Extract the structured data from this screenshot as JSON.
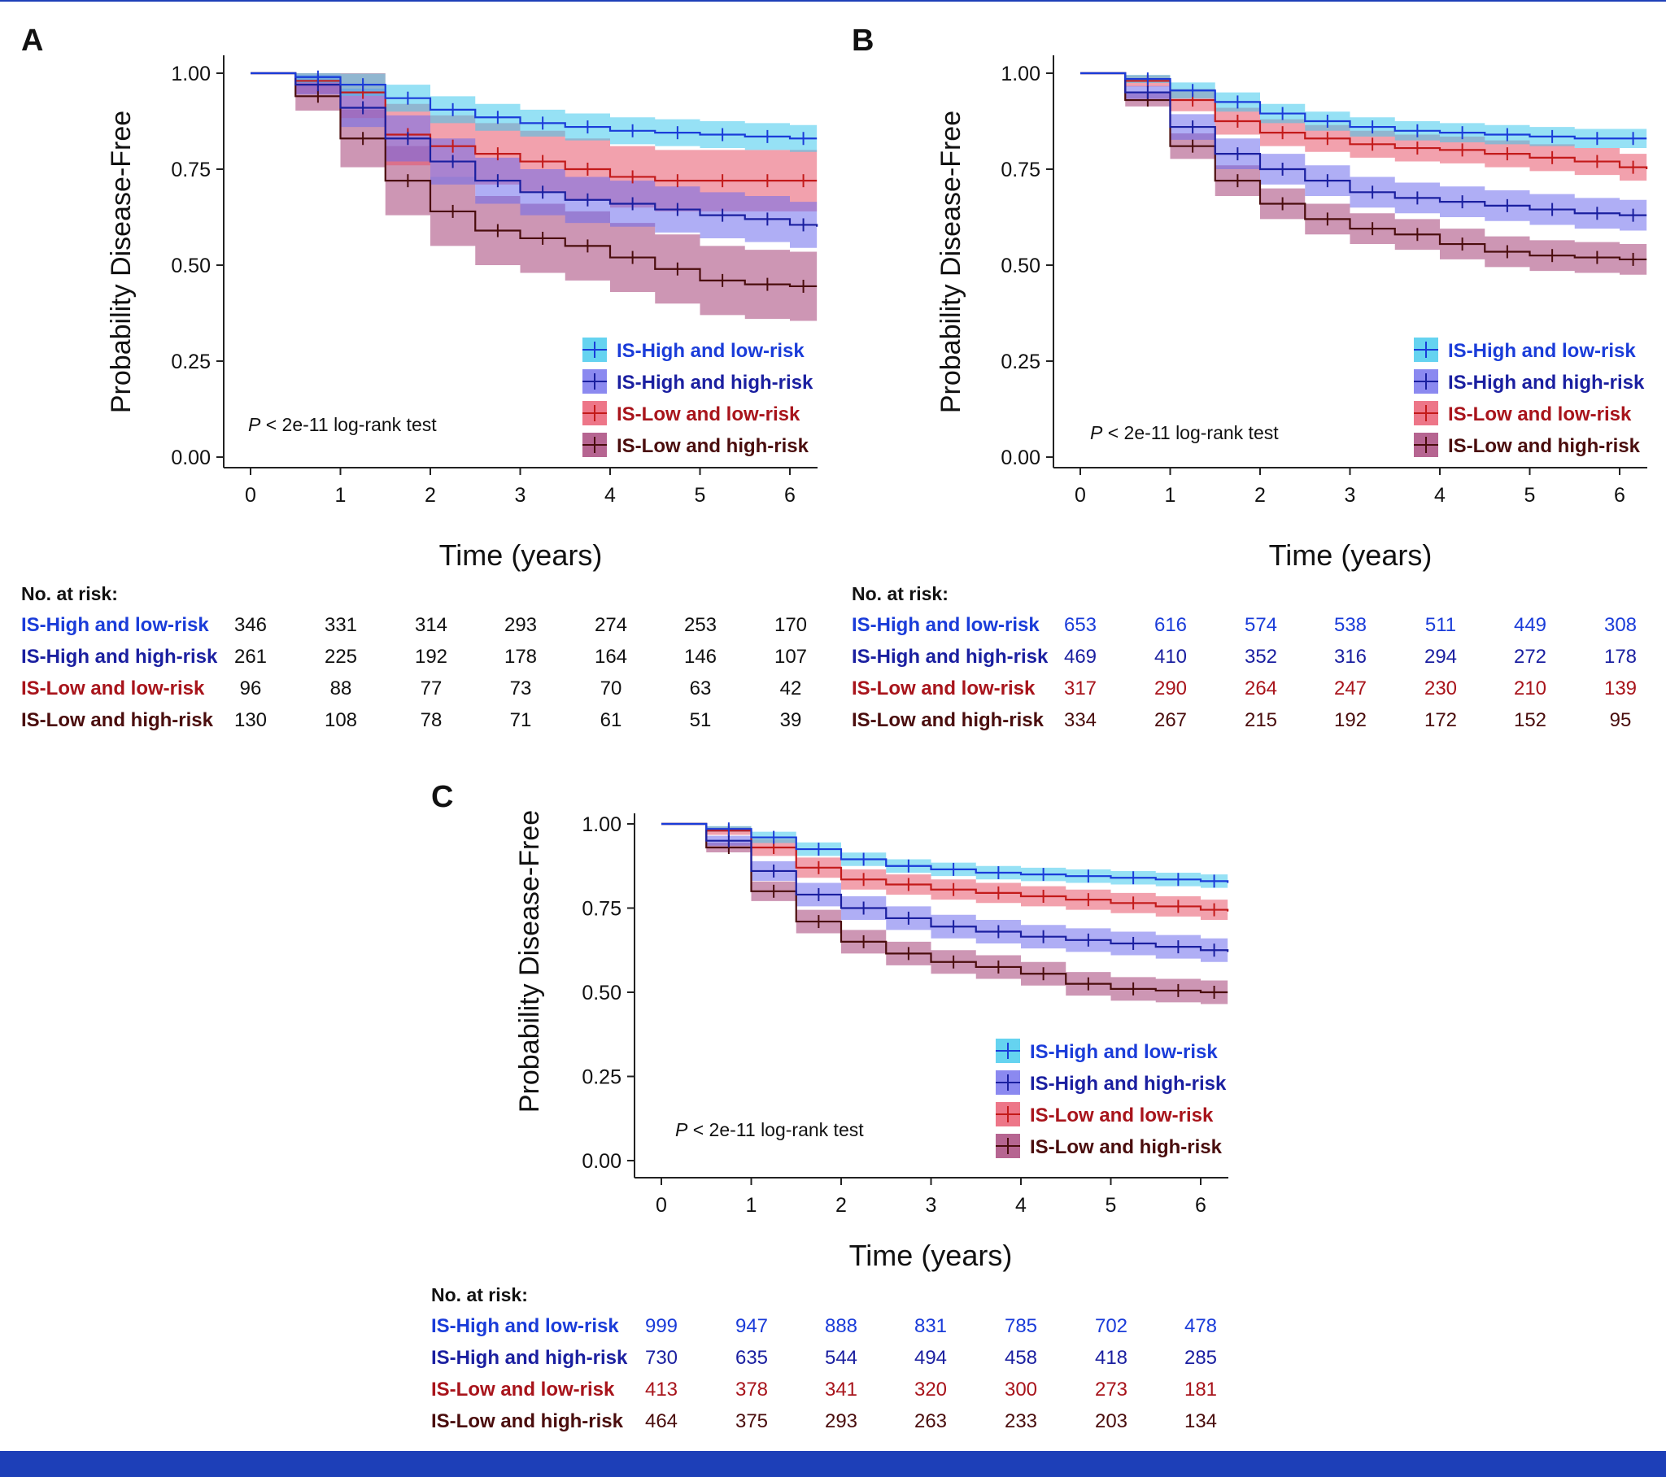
{
  "colors": {
    "IS-High and low-risk": {
      "line": "#1a3cd9",
      "band": "#3fc8ec",
      "text": "#1a3cd9"
    },
    "IS-High and high-risk": {
      "line": "#1a1fa0",
      "band": "#6e6bec",
      "text": "#1a1fa0"
    },
    "IS-Low and low-risk": {
      "line": "#c31a1a",
      "band": "#e8546a",
      "text": "#a8141b"
    },
    "IS-Low and high-risk": {
      "line": "#4a0d0d",
      "band": "#a43f76",
      "text": "#4a0d0d"
    },
    "bottom_bar": "#1d3fb8"
  },
  "chart_data": [
    {
      "panel": "A",
      "type": "line",
      "ylabel": "Probability Disease-Free",
      "xlabel": "Time (years)",
      "xlim": [
        -0.3,
        6.3
      ],
      "ylim": [
        0,
        1.05
      ],
      "xticks": [
        "0",
        "1",
        "2",
        "3",
        "4",
        "5",
        "6"
      ],
      "yticks": [
        "0.00",
        "0.25",
        "0.50",
        "0.75",
        "1.00"
      ],
      "pvalue_p": "P",
      "pvalue_rest": " < 2e-11 log-rank test",
      "legend": [
        "IS-High and low-risk",
        "IS-High and high-risk",
        "IS-Low and low-risk",
        "IS-Low and high-risk"
      ],
      "series": [
        {
          "name": "IS-High and low-risk",
          "x": [
            0,
            0.5,
            1,
            1.5,
            2,
            2.5,
            3,
            3.5,
            4,
            4.5,
            5,
            5.5,
            6,
            6.3
          ],
          "values": [
            1.0,
            0.99,
            0.97,
            0.935,
            0.905,
            0.885,
            0.87,
            0.86,
            0.85,
            0.845,
            0.84,
            0.835,
            0.83,
            0.83
          ],
          "band": 0.035
        },
        {
          "name": "IS-High and high-risk",
          "x": [
            0,
            0.5,
            1,
            1.5,
            2,
            2.5,
            3,
            3.5,
            4,
            4.5,
            5,
            5.5,
            6,
            6.3
          ],
          "values": [
            1.0,
            0.97,
            0.91,
            0.83,
            0.77,
            0.72,
            0.69,
            0.67,
            0.66,
            0.645,
            0.63,
            0.62,
            0.605,
            0.6
          ],
          "band": 0.06
        },
        {
          "name": "IS-Low and low-risk",
          "x": [
            0,
            0.5,
            1,
            1.5,
            2,
            2.5,
            3,
            3.5,
            4,
            4.5,
            5,
            5.5,
            6,
            6.3
          ],
          "values": [
            1.0,
            0.98,
            0.95,
            0.84,
            0.81,
            0.79,
            0.77,
            0.75,
            0.73,
            0.72,
            0.72,
            0.72,
            0.72,
            0.72
          ],
          "band": 0.08
        },
        {
          "name": "IS-Low and high-risk",
          "x": [
            0,
            0.5,
            1,
            1.5,
            2,
            2.5,
            3,
            3.5,
            4,
            4.5,
            5,
            5.5,
            6,
            6.3
          ],
          "values": [
            1.0,
            0.94,
            0.83,
            0.72,
            0.64,
            0.59,
            0.57,
            0.55,
            0.52,
            0.49,
            0.46,
            0.45,
            0.445,
            0.445
          ],
          "band": 0.09
        }
      ],
      "risk_table": {
        "title": "No. at risk:",
        "rows": [
          {
            "label": "IS-High and low-risk",
            "values": [
              "346",
              "331",
              "314",
              "293",
              "274",
              "253",
              "170"
            ]
          },
          {
            "label": "IS-High and high-risk",
            "values": [
              "261",
              "225",
              "192",
              "178",
              "164",
              "146",
              "107"
            ]
          },
          {
            "label": "IS-Low and low-risk",
            "values": [
              "96",
              "88",
              "77",
              "73",
              "70",
              "63",
              "42"
            ]
          },
          {
            "label": "IS-Low and high-risk",
            "values": [
              "130",
              "108",
              "78",
              "71",
              "61",
              "51",
              "39"
            ]
          }
        ]
      }
    },
    {
      "panel": "B",
      "type": "line",
      "ylabel": "Probability Disease-Free",
      "xlabel": "Time (years)",
      "xlim": [
        -0.3,
        6.3
      ],
      "ylim": [
        0,
        1.05
      ],
      "xticks": [
        "0",
        "1",
        "2",
        "3",
        "4",
        "5",
        "6"
      ],
      "yticks": [
        "0.00",
        "0.25",
        "0.50",
        "0.75",
        "1.00"
      ],
      "pvalue_p": "P",
      "pvalue_rest": " < 2e-11 log-rank test",
      "legend": [
        "IS-High and low-risk",
        "IS-High and high-risk",
        "IS-Low and low-risk",
        "IS-Low and high-risk"
      ],
      "series": [
        {
          "name": "IS-High and low-risk",
          "x": [
            0,
            0.5,
            1,
            1.5,
            2,
            2.5,
            3,
            3.5,
            4,
            4.5,
            5,
            5.5,
            6,
            6.3
          ],
          "values": [
            1.0,
            0.985,
            0.955,
            0.925,
            0.895,
            0.875,
            0.86,
            0.85,
            0.845,
            0.84,
            0.835,
            0.83,
            0.83,
            0.83
          ],
          "band": 0.025
        },
        {
          "name": "IS-High and high-risk",
          "x": [
            0,
            0.5,
            1,
            1.5,
            2,
            2.5,
            3,
            3.5,
            4,
            4.5,
            5,
            5.5,
            6,
            6.3
          ],
          "values": [
            1.0,
            0.95,
            0.86,
            0.79,
            0.75,
            0.72,
            0.69,
            0.675,
            0.665,
            0.655,
            0.645,
            0.635,
            0.63,
            0.63
          ],
          "band": 0.04
        },
        {
          "name": "IS-Low and low-risk",
          "x": [
            0,
            0.5,
            1,
            1.5,
            2,
            2.5,
            3,
            3.5,
            4,
            4.5,
            5,
            5.5,
            6,
            6.3
          ],
          "values": [
            1.0,
            0.98,
            0.93,
            0.875,
            0.845,
            0.83,
            0.815,
            0.805,
            0.8,
            0.79,
            0.78,
            0.77,
            0.755,
            0.75
          ],
          "band": 0.035
        },
        {
          "name": "IS-Low and high-risk",
          "x": [
            0,
            0.5,
            1,
            1.5,
            2,
            2.5,
            3,
            3.5,
            4,
            4.5,
            5,
            5.5,
            6,
            6.3
          ],
          "values": [
            1.0,
            0.93,
            0.81,
            0.72,
            0.66,
            0.62,
            0.595,
            0.58,
            0.555,
            0.535,
            0.525,
            0.52,
            0.515,
            0.515
          ],
          "band": 0.04
        }
      ],
      "risk_table": {
        "title": "No. at risk:",
        "rows": [
          {
            "label": "IS-High and low-risk",
            "values": [
              "653",
              "616",
              "574",
              "538",
              "511",
              "449",
              "308"
            ]
          },
          {
            "label": "IS-High and high-risk",
            "values": [
              "469",
              "410",
              "352",
              "316",
              "294",
              "272",
              "178"
            ]
          },
          {
            "label": "IS-Low and low-risk",
            "values": [
              "317",
              "290",
              "264",
              "247",
              "230",
              "210",
              "139"
            ]
          },
          {
            "label": "IS-Low and high-risk",
            "values": [
              "334",
              "267",
              "215",
              "192",
              "172",
              "152",
              "95"
            ]
          }
        ]
      }
    },
    {
      "panel": "C",
      "type": "line",
      "ylabel": "Probability Disease-Free",
      "xlabel": "Time (years)",
      "xlim": [
        -0.3,
        6.3
      ],
      "ylim": [
        0,
        1.05
      ],
      "xticks": [
        "0",
        "1",
        "2",
        "3",
        "4",
        "5",
        "6"
      ],
      "yticks": [
        "0.00",
        "0.25",
        "0.50",
        "0.75",
        "1.00"
      ],
      "pvalue_p": "P",
      "pvalue_rest": " < 2e-11 log-rank test",
      "legend": [
        "IS-High and low-risk",
        "IS-High and high-risk",
        "IS-Low and low-risk",
        "IS-Low and high-risk"
      ],
      "series": [
        {
          "name": "IS-High and low-risk",
          "x": [
            0,
            0.5,
            1,
            1.5,
            2,
            2.5,
            3,
            3.5,
            4,
            4.5,
            5,
            5.5,
            6,
            6.3
          ],
          "values": [
            1.0,
            0.985,
            0.96,
            0.925,
            0.895,
            0.875,
            0.865,
            0.855,
            0.85,
            0.845,
            0.84,
            0.835,
            0.83,
            0.825
          ],
          "band": 0.02
        },
        {
          "name": "IS-High and high-risk",
          "x": [
            0,
            0.5,
            1,
            1.5,
            2,
            2.5,
            3,
            3.5,
            4,
            4.5,
            5,
            5.5,
            6,
            6.3
          ],
          "values": [
            1.0,
            0.95,
            0.86,
            0.79,
            0.75,
            0.72,
            0.695,
            0.68,
            0.665,
            0.655,
            0.645,
            0.635,
            0.625,
            0.62
          ],
          "band": 0.035
        },
        {
          "name": "IS-Low and low-risk",
          "x": [
            0,
            0.5,
            1,
            1.5,
            2,
            2.5,
            3,
            3.5,
            4,
            4.5,
            5,
            5.5,
            6,
            6.3
          ],
          "values": [
            1.0,
            0.98,
            0.93,
            0.87,
            0.835,
            0.82,
            0.805,
            0.795,
            0.785,
            0.775,
            0.765,
            0.755,
            0.745,
            0.74
          ],
          "band": 0.03
        },
        {
          "name": "IS-Low and high-risk",
          "x": [
            0,
            0.5,
            1,
            1.5,
            2,
            2.5,
            3,
            3.5,
            4,
            4.5,
            5,
            5.5,
            6,
            6.3
          ],
          "values": [
            1.0,
            0.93,
            0.8,
            0.71,
            0.65,
            0.615,
            0.59,
            0.575,
            0.555,
            0.525,
            0.51,
            0.505,
            0.5,
            0.5
          ],
          "band": 0.035
        }
      ],
      "risk_table": {
        "title": "No. at risk:",
        "rows": [
          {
            "label": "IS-High and low-risk",
            "values": [
              "999",
              "947",
              "888",
              "831",
              "785",
              "702",
              "478"
            ]
          },
          {
            "label": "IS-High and high-risk",
            "values": [
              "730",
              "635",
              "544",
              "494",
              "458",
              "418",
              "285"
            ]
          },
          {
            "label": "IS-Low and low-risk",
            "values": [
              "413",
              "378",
              "341",
              "320",
              "300",
              "273",
              "181"
            ]
          },
          {
            "label": "IS-Low and high-risk",
            "values": [
              "464",
              "375",
              "293",
              "263",
              "233",
              "203",
              "134"
            ]
          }
        ]
      }
    }
  ]
}
